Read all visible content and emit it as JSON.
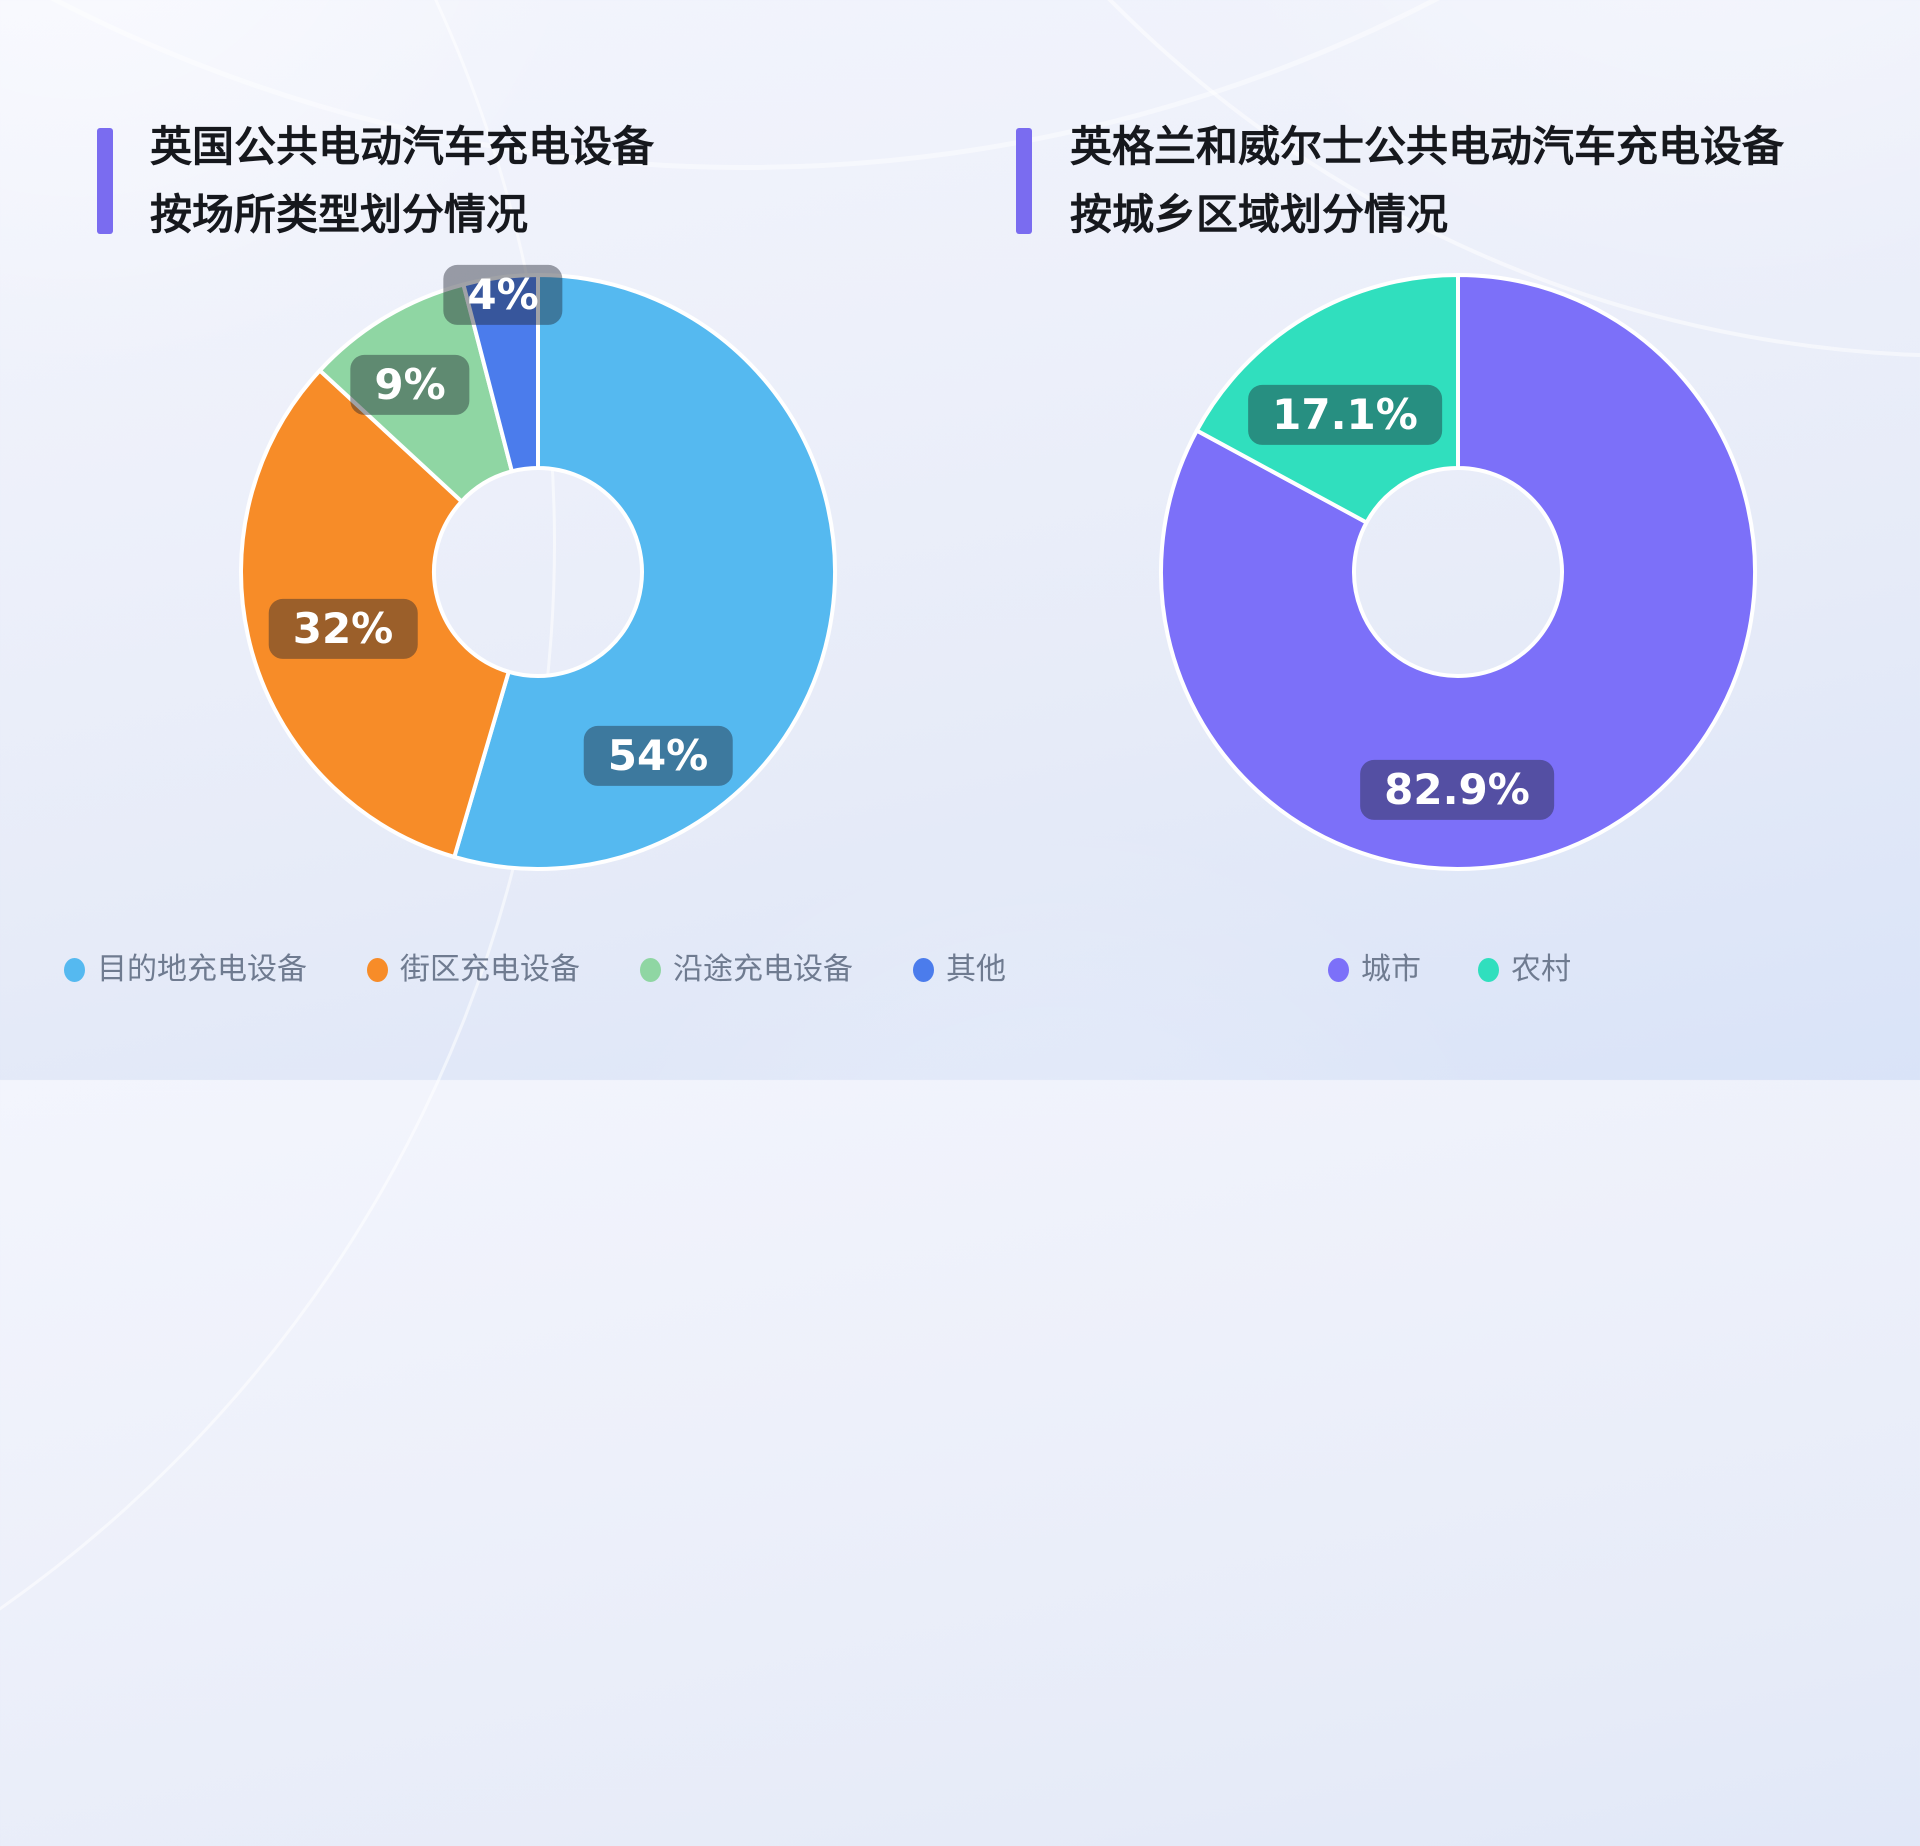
{
  "colors": {
    "accent_bar": "#7A6CF0",
    "title_text": "#16181D",
    "legend_text": "#6F7B90",
    "badge_overlay": "rgba(28,34,46,0.42)",
    "slice_border": "#FFFFFF"
  },
  "chart_data": [
    {
      "type": "pie",
      "donut": true,
      "title_lines": [
        "英国公共电动汽车充电设备",
        "按场所类型划分情况"
      ],
      "legend_position": "bottom",
      "start_angle_deg": 0,
      "direction": "clockwise",
      "outer_radius_px": 297,
      "inner_radius_px": 104,
      "series": [
        {
          "name": "目的地充电设备",
          "value": 54,
          "display": "54%",
          "color": "#55B9F0",
          "label_offset": {
            "dx": 120,
            "dy": 184
          }
        },
        {
          "name": "街区充电设备",
          "value": 32,
          "display": "32%",
          "color": "#F78C28",
          "label_offset": {
            "dx": -195,
            "dy": 57
          }
        },
        {
          "name": "沿途充电设备",
          "value": 9,
          "display": "9%",
          "color": "#8FD6A3",
          "label_offset": {
            "dx": -128,
            "dy": -187
          }
        },
        {
          "name": "其他",
          "value": 4,
          "display": "4%",
          "color": "#4B7CEC",
          "label_offset": {
            "dx": -35,
            "dy": -277
          }
        }
      ]
    },
    {
      "type": "pie",
      "donut": true,
      "title_lines": [
        "英格兰和威尔士公共电动汽车充电设备",
        "按城乡区域划分情况"
      ],
      "legend_position": "bottom",
      "start_angle_deg": 0,
      "direction": "clockwise",
      "outer_radius_px": 297,
      "inner_radius_px": 104,
      "series": [
        {
          "name": "城市",
          "value": 82.9,
          "display": "82.9%",
          "color": "#7C70F9",
          "label_offset": {
            "dx": -1,
            "dy": 218
          }
        },
        {
          "name": "农村",
          "value": 17.1,
          "display": "17.1%",
          "color": "#30DFBE",
          "label_offset": {
            "dx": -113,
            "dy": -157
          }
        }
      ]
    }
  ]
}
